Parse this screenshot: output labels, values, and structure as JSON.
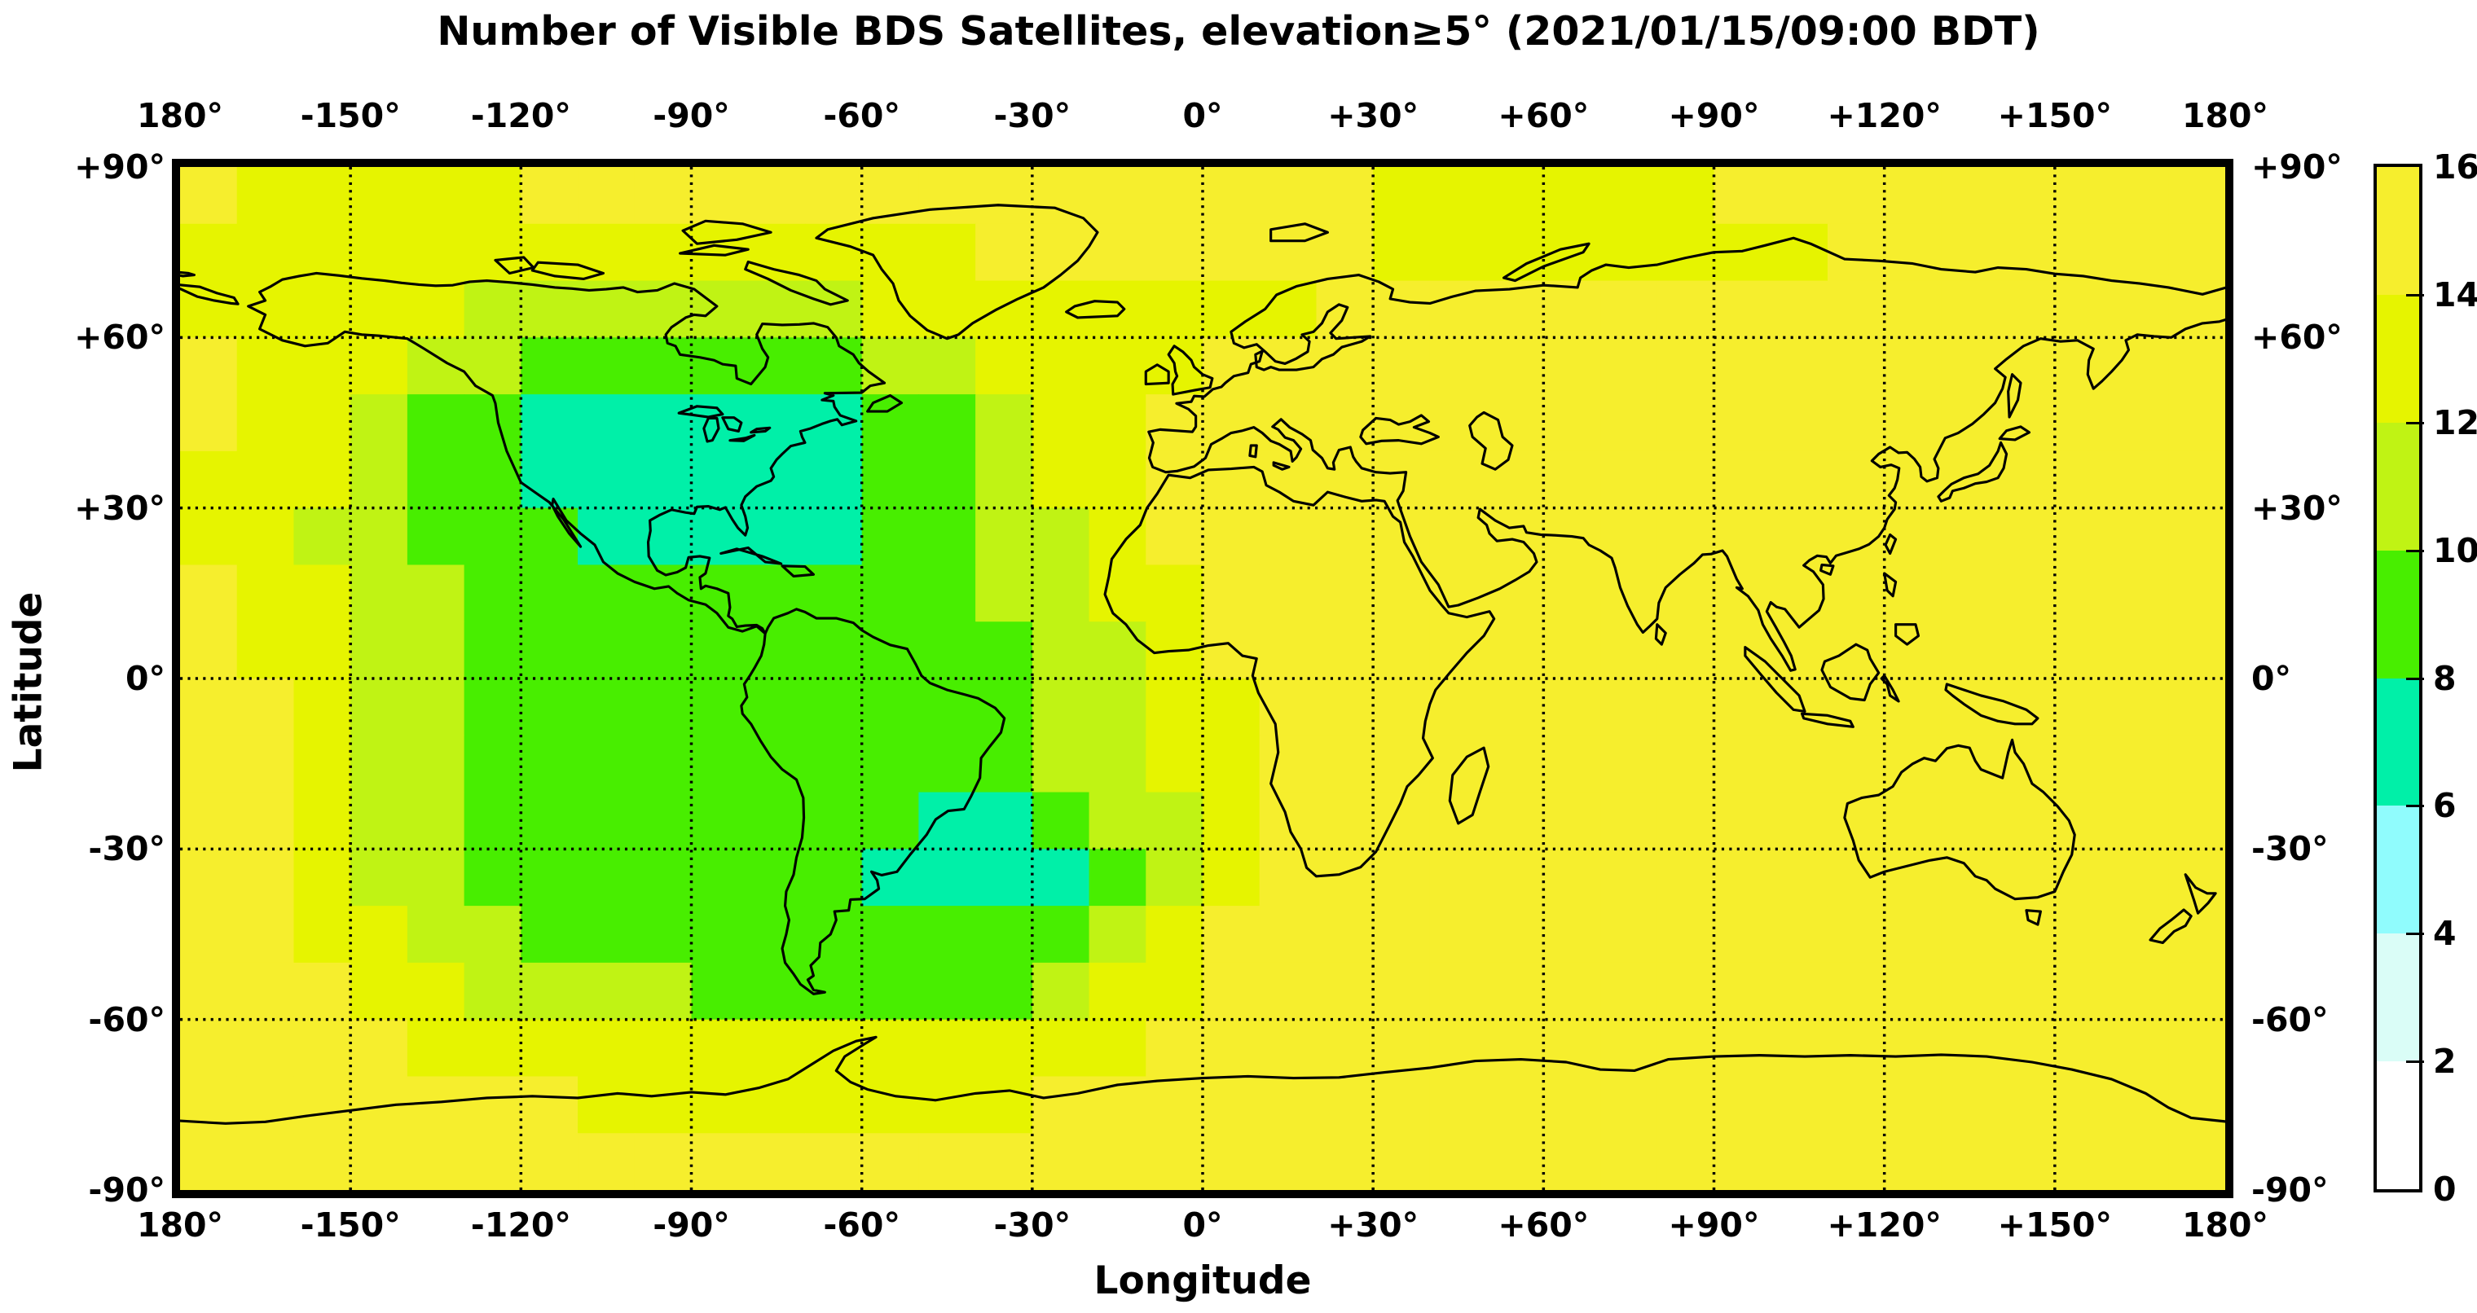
{
  "title": "Number of Visible BDS Satellites, elevation≥5° (2021/01/15/09:00 BDT)",
  "axes": {
    "x_label": "Longitude",
    "y_label": "Latitude",
    "lon_tick_labels": [
      "180°",
      "-150°",
      "-120°",
      "-90°",
      "-60°",
      "-30°",
      "0°",
      "+30°",
      "+60°",
      "+90°",
      "+120°",
      "+150°",
      "180°"
    ],
    "lat_tick_labels": [
      "+90°",
      "+60°",
      "+30°",
      "0°",
      "-30°",
      "-60°",
      "-90°"
    ],
    "grid": "dotted 30-degree graticule"
  },
  "colorbar": {
    "tick_labels": [
      "16",
      "14",
      "12",
      "10",
      "8",
      "6",
      "4",
      "2",
      "0"
    ],
    "levels": [
      0,
      2,
      4,
      6,
      8,
      10,
      12,
      14,
      16
    ],
    "colors": [
      "#ffffff",
      "#dafdf7",
      "#90fcfd",
      "#00f0a8",
      "#48ee00",
      "#c0f314",
      "#e6f400",
      "#f6ee2d"
    ]
  },
  "chart_data": {
    "type": "heatmap",
    "title": "Number of Visible BDS Satellites, elevation≥5° (2021/01/15/09:00 BDT)",
    "xlabel": "Longitude",
    "ylabel": "Latitude",
    "x_range": [
      -180,
      180
    ],
    "y_range": [
      -90,
      90
    ],
    "legend_position": "right colorbar, 0 to 16 satellites in steps of 2",
    "cell_size_deg": 10,
    "rows_order": "latitude +90 (top) to -90 (bottom)",
    "cols_order": "longitude -180 (left) to +180 (right)",
    "values_note": "visible-satellite count (bin midpoints of the filled contour levels)",
    "values": [
      [
        15,
        13,
        13,
        13,
        13,
        13,
        15,
        15,
        15,
        15,
        15,
        15,
        15,
        15,
        15,
        15,
        15,
        15,
        15,
        15,
        15,
        13,
        13,
        13,
        13,
        13,
        13,
        15,
        15,
        15,
        15,
        15,
        15,
        15,
        15,
        15
      ],
      [
        13,
        13,
        13,
        13,
        13,
        13,
        13,
        13,
        13,
        13,
        13,
        13,
        13,
        13,
        15,
        15,
        15,
        15,
        15,
        15,
        15,
        13,
        13,
        13,
        13,
        13,
        13,
        13,
        13,
        15,
        15,
        15,
        15,
        15,
        15,
        15
      ],
      [
        13,
        13,
        13,
        13,
        13,
        11,
        11,
        11,
        11,
        11,
        11,
        11,
        13,
        13,
        13,
        13,
        13,
        13,
        13,
        13,
        15,
        15,
        15,
        15,
        15,
        15,
        15,
        15,
        15,
        15,
        15,
        15,
        15,
        15,
        15,
        15
      ],
      [
        15,
        13,
        13,
        13,
        11,
        11,
        9,
        9,
        9,
        9,
        9,
        9,
        11,
        11,
        13,
        13,
        13,
        13,
        15,
        15,
        15,
        15,
        15,
        15,
        15,
        15,
        15,
        15,
        15,
        15,
        15,
        15,
        15,
        15,
        15,
        15
      ],
      [
        15,
        13,
        13,
        11,
        9,
        9,
        7,
        7,
        7,
        7,
        7,
        7,
        9,
        9,
        11,
        13,
        13,
        15,
        15,
        15,
        15,
        15,
        15,
        15,
        15,
        15,
        15,
        15,
        15,
        15,
        15,
        15,
        15,
        15,
        15,
        15
      ],
      [
        13,
        13,
        13,
        11,
        9,
        9,
        7,
        7,
        7,
        7,
        7,
        7,
        9,
        9,
        11,
        13,
        13,
        15,
        15,
        15,
        15,
        15,
        15,
        15,
        15,
        15,
        15,
        15,
        15,
        15,
        15,
        15,
        15,
        15,
        15,
        15
      ],
      [
        13,
        13,
        11,
        11,
        9,
        9,
        9,
        7,
        7,
        7,
        7,
        7,
        9,
        9,
        11,
        11,
        13,
        15,
        15,
        15,
        15,
        15,
        15,
        15,
        15,
        15,
        15,
        15,
        15,
        15,
        15,
        15,
        15,
        15,
        15,
        15
      ],
      [
        15,
        13,
        13,
        11,
        11,
        9,
        9,
        9,
        9,
        9,
        9,
        9,
        9,
        9,
        11,
        11,
        13,
        13,
        15,
        15,
        15,
        15,
        15,
        15,
        15,
        15,
        15,
        15,
        15,
        15,
        15,
        15,
        15,
        15,
        15,
        15
      ],
      [
        15,
        13,
        13,
        11,
        11,
        9,
        9,
        9,
        9,
        9,
        9,
        9,
        9,
        9,
        9,
        11,
        11,
        13,
        15,
        15,
        15,
        15,
        15,
        15,
        15,
        15,
        15,
        15,
        15,
        15,
        15,
        15,
        15,
        15,
        15,
        15
      ],
      [
        15,
        15,
        13,
        11,
        11,
        9,
        9,
        9,
        9,
        9,
        9,
        9,
        9,
        9,
        9,
        11,
        11,
        13,
        13,
        15,
        15,
        15,
        15,
        15,
        15,
        15,
        15,
        15,
        15,
        15,
        15,
        15,
        15,
        15,
        15,
        15
      ],
      [
        15,
        15,
        13,
        11,
        11,
        9,
        9,
        9,
        9,
        9,
        9,
        9,
        9,
        9,
        9,
        11,
        11,
        13,
        13,
        15,
        15,
        15,
        15,
        15,
        15,
        15,
        15,
        15,
        15,
        15,
        15,
        15,
        15,
        15,
        15,
        15
      ],
      [
        15,
        15,
        13,
        11,
        11,
        9,
        9,
        9,
        9,
        9,
        9,
        9,
        9,
        7,
        7,
        9,
        11,
        11,
        13,
        15,
        15,
        15,
        15,
        15,
        15,
        15,
        15,
        15,
        15,
        15,
        15,
        15,
        15,
        15,
        15,
        15
      ],
      [
        15,
        15,
        13,
        11,
        11,
        9,
        9,
        9,
        9,
        9,
        9,
        9,
        7,
        7,
        7,
        7,
        9,
        11,
        13,
        15,
        15,
        15,
        15,
        15,
        15,
        15,
        15,
        15,
        15,
        15,
        15,
        15,
        15,
        15,
        15,
        15
      ],
      [
        15,
        15,
        13,
        13,
        11,
        11,
        9,
        9,
        9,
        9,
        9,
        9,
        9,
        9,
        9,
        9,
        11,
        13,
        15,
        15,
        15,
        15,
        15,
        15,
        15,
        15,
        15,
        15,
        15,
        15,
        15,
        15,
        15,
        15,
        15,
        15
      ],
      [
        15,
        15,
        15,
        13,
        13,
        11,
        11,
        11,
        11,
        9,
        9,
        9,
        9,
        9,
        9,
        11,
        13,
        13,
        15,
        15,
        15,
        15,
        15,
        15,
        15,
        15,
        15,
        15,
        15,
        15,
        15,
        15,
        15,
        15,
        15,
        15
      ],
      [
        15,
        15,
        15,
        15,
        13,
        13,
        13,
        13,
        13,
        13,
        13,
        13,
        13,
        13,
        13,
        13,
        13,
        15,
        15,
        15,
        15,
        15,
        15,
        15,
        15,
        15,
        15,
        15,
        15,
        15,
        15,
        15,
        15,
        15,
        15,
        15
      ],
      [
        15,
        15,
        15,
        15,
        15,
        15,
        15,
        13,
        13,
        13,
        13,
        13,
        13,
        13,
        13,
        15,
        15,
        15,
        15,
        15,
        15,
        15,
        15,
        15,
        15,
        15,
        15,
        15,
        15,
        15,
        15,
        15,
        15,
        15,
        15,
        15
      ],
      [
        15,
        15,
        15,
        15,
        15,
        15,
        15,
        15,
        15,
        15,
        15,
        15,
        15,
        15,
        15,
        15,
        15,
        15,
        15,
        15,
        15,
        15,
        15,
        15,
        15,
        15,
        15,
        15,
        15,
        15,
        15,
        15,
        15,
        15,
        15,
        15
      ]
    ]
  }
}
